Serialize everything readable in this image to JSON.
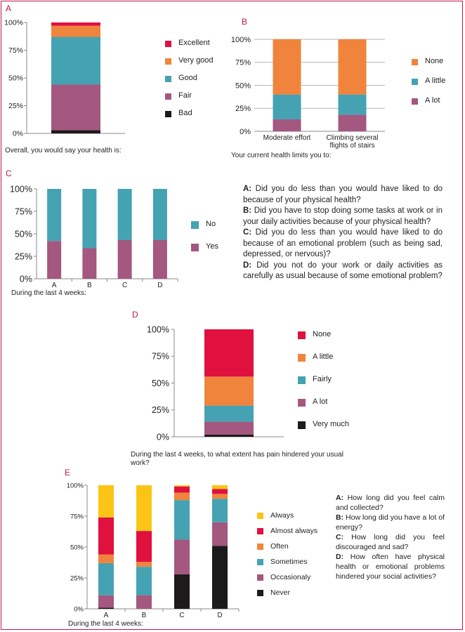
{
  "colors": {
    "frame": "#c0174d",
    "excellent": "#e0103f",
    "very_good": "#f0843c",
    "good": "#45a2b2",
    "fair": "#a4577f",
    "bad": "#1c1a1a",
    "grid": "#bbbbbb"
  },
  "chart_data": [
    {
      "id": "A",
      "type": "bar",
      "stacked": true,
      "panel_label": "A",
      "caption": "Overall, you would say your health is:",
      "categories": [
        ""
      ],
      "ylim": [
        0,
        100
      ],
      "yticks": [
        "0%",
        "25%",
        "50%",
        "75%",
        "100%"
      ],
      "legend_position": "right",
      "series": [
        {
          "name": "Bad",
          "values": [
            3
          ],
          "color": "#1c1a1a"
        },
        {
          "name": "Fair",
          "values": [
            41
          ],
          "color": "#a4577f"
        },
        {
          "name": "Good",
          "values": [
            43
          ],
          "color": "#45a2b2"
        },
        {
          "name": "Very good",
          "values": [
            10
          ],
          "color": "#f0843c"
        },
        {
          "name": "Excellent",
          "values": [
            3
          ],
          "color": "#e0103f"
        }
      ]
    },
    {
      "id": "B",
      "type": "bar",
      "stacked": true,
      "panel_label": "B",
      "caption": "Your current health limits you to:",
      "categories": [
        [
          "Moderate effort"
        ],
        [
          "Climbing several",
          "flights of stairs"
        ]
      ],
      "ylim": [
        0,
        100
      ],
      "yticks": [
        "0%",
        "25%",
        "50%",
        "75%",
        "100%"
      ],
      "grid": true,
      "legend_position": "right",
      "series": [
        {
          "name": "A lot",
          "values": [
            13,
            18
          ],
          "color": "#a4577f"
        },
        {
          "name": "A little",
          "values": [
            27,
            22
          ],
          "color": "#45a2b2"
        },
        {
          "name": "None",
          "values": [
            60,
            60
          ],
          "color": "#f0843c"
        }
      ]
    },
    {
      "id": "C",
      "type": "bar",
      "stacked": true,
      "panel_label": "C",
      "caption": "During the last 4 weeks:",
      "categories": [
        [
          "A"
        ],
        [
          "B"
        ],
        [
          "C"
        ],
        [
          "D"
        ]
      ],
      "ylim": [
        0,
        100
      ],
      "yticks": [
        "0%",
        "25%",
        "50%",
        "75%",
        "100%"
      ],
      "legend_position": "right",
      "series": [
        {
          "name": "Yes",
          "values": [
            42,
            34,
            43,
            43
          ],
          "color": "#a4577f"
        },
        {
          "name": "No",
          "values": [
            58,
            66,
            57,
            57
          ],
          "color": "#45a2b2"
        }
      ]
    },
    {
      "id": "D",
      "type": "bar",
      "stacked": true,
      "panel_label": "D",
      "caption": "During the last 4 weeks, to what extent has pain hindered your usual work?",
      "categories": [
        ""
      ],
      "ylim": [
        0,
        100
      ],
      "yticks": [
        "0%",
        "25%",
        "50%",
        "75%",
        "100%"
      ],
      "legend_position": "right",
      "series": [
        {
          "name": "Very much",
          "values": [
            2
          ],
          "color": "#1c1a1a"
        },
        {
          "name": "A lot",
          "values": [
            12
          ],
          "color": "#a4577f"
        },
        {
          "name": "Fairly",
          "values": [
            15
          ],
          "color": "#45a2b2"
        },
        {
          "name": "A little",
          "values": [
            27
          ],
          "color": "#f0843c"
        },
        {
          "name": "None",
          "values": [
            44
          ],
          "color": "#e0103f"
        }
      ]
    },
    {
      "id": "E",
      "type": "bar",
      "stacked": true,
      "panel_label": "E",
      "caption": "During the last 4 weeks:",
      "categories": [
        [
          "A"
        ],
        [
          "B"
        ],
        [
          "C"
        ],
        [
          "D"
        ]
      ],
      "ylim": [
        0,
        100
      ],
      "yticks": [
        "0%",
        "25%",
        "50%",
        "75%",
        "100%"
      ],
      "legend_position": "right",
      "series": [
        {
          "name": "Never",
          "values": [
            1,
            0,
            28,
            51
          ],
          "color": "#1c1a1a"
        },
        {
          "name": "Occasionaly",
          "values": [
            10,
            11,
            28,
            19
          ],
          "color": "#a4577f"
        },
        {
          "name": "Sometimes",
          "values": [
            26,
            23,
            32,
            19
          ],
          "color": "#45a2b2"
        },
        {
          "name": "Often",
          "values": [
            7,
            4,
            6,
            4
          ],
          "color": "#f0843c"
        },
        {
          "name": "Almost always",
          "values": [
            30,
            25,
            5,
            4
          ],
          "color": "#e0103f"
        },
        {
          "name": "Always",
          "values": [
            26,
            37,
            1,
            3
          ],
          "color": "#fcc515"
        }
      ]
    }
  ],
  "questions_c": [
    {
      "key": "A:",
      "text": " Did you do less than you would have liked to do because of your physical health?"
    },
    {
      "key": "B:",
      "text": " Did you have to stop doing some tasks at work or in your daily activities because of your physical health?"
    },
    {
      "key": "C:",
      "text": " Did you do less than you would have liked to do because of an emotional problem (such as being sad, depressed, or nervous)?"
    },
    {
      "key": "D:",
      "text": " Did you not do your work or daily activities as carefully as usual because of some emotional problem?"
    }
  ],
  "questions_e": [
    {
      "key": "A:",
      "text": " How long did you feel calm and collected?"
    },
    {
      "key": "B:",
      "text": " How long did you have a lot of energy?"
    },
    {
      "key": "C:",
      "text": " How long did you feel discouraged and sad?"
    },
    {
      "key": "D:",
      "text": " How often have physical health or emotional problems hindered your social activities?"
    }
  ]
}
